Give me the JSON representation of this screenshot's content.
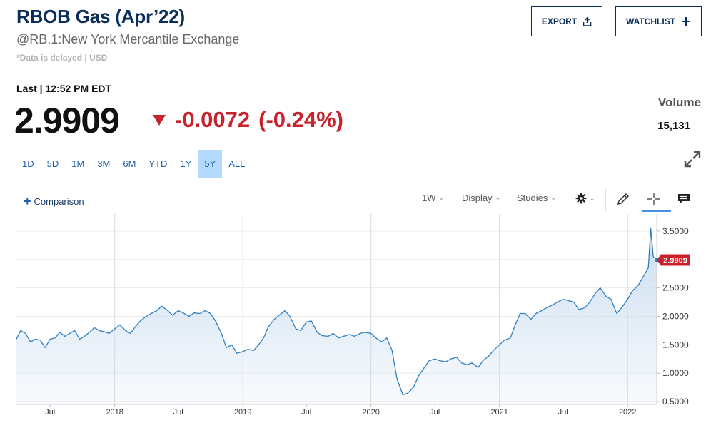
{
  "header": {
    "title": "RBOB Gas (Apr’22)",
    "subtitle": "@RB.1:New York Mercantile Exchange",
    "delayed_note": "*Data is delayed | USD",
    "export_label": "EXPORT",
    "watchlist_label": "WATCHLIST"
  },
  "quote": {
    "last_label": "Last | 12:52 PM EDT",
    "price": "2.9909",
    "change": "-0.0072",
    "change_pct": "(-0.24%)",
    "volume_label": "Volume",
    "volume": "15,131",
    "down_color": "#c8232c"
  },
  "ranges": [
    {
      "label": "1D",
      "active": false
    },
    {
      "label": "5D",
      "active": false
    },
    {
      "label": "1M",
      "active": false
    },
    {
      "label": "3M",
      "active": false
    },
    {
      "label": "6M",
      "active": false
    },
    {
      "label": "YTD",
      "active": false
    },
    {
      "label": "1Y",
      "active": false
    },
    {
      "label": "5Y",
      "active": true
    },
    {
      "label": "ALL",
      "active": false
    }
  ],
  "toolbar": {
    "comparison_label": "Comparison",
    "interval_label": "1W",
    "display_label": "Display",
    "studies_label": "Studies",
    "icons": [
      "gear-icon",
      "pencil-icon",
      "crosshair-icon",
      "comment-icon"
    ]
  },
  "chart_data": {
    "type": "area",
    "title": "",
    "xlabel": "",
    "ylabel": "",
    "xlim": [
      "2017-03-25",
      "2022-03-25"
    ],
    "ylim": [
      0.45,
      3.7
    ],
    "y_ticks": [
      "0.5000",
      "1.0000",
      "1.5000",
      "2.0000",
      "2.5000",
      "3.0000",
      "3.5000"
    ],
    "x_ticks": [
      {
        "label": "Jul",
        "date": "2017-07-01"
      },
      {
        "label": "2018",
        "date": "2018-01-01"
      },
      {
        "label": "Jul",
        "date": "2018-07-01"
      },
      {
        "label": "2019",
        "date": "2019-01-01"
      },
      {
        "label": "Jul",
        "date": "2019-07-01"
      },
      {
        "label": "2020",
        "date": "2020-01-01"
      },
      {
        "label": "Jul",
        "date": "2020-07-01"
      },
      {
        "label": "2021",
        "date": "2021-01-01"
      },
      {
        "label": "Jul",
        "date": "2021-07-01"
      },
      {
        "label": "2022",
        "date": "2022-01-01"
      }
    ],
    "last_value": 2.9909,
    "last_value_label": "2.9909",
    "line_color": "#2e7fc1",
    "fill_color": "#c9dcef",
    "series": [
      {
        "values": [
          [
            "2017-03-25",
            1.58
          ],
          [
            "2017-04-08",
            1.75
          ],
          [
            "2017-04-22",
            1.7
          ],
          [
            "2017-05-06",
            1.55
          ],
          [
            "2017-05-20",
            1.6
          ],
          [
            "2017-06-03",
            1.58
          ],
          [
            "2017-06-17",
            1.45
          ],
          [
            "2017-07-01",
            1.6
          ],
          [
            "2017-07-15",
            1.62
          ],
          [
            "2017-07-29",
            1.72
          ],
          [
            "2017-08-12",
            1.65
          ],
          [
            "2017-08-26",
            1.7
          ],
          [
            "2017-09-09",
            1.75
          ],
          [
            "2017-09-23",
            1.6
          ],
          [
            "2017-10-07",
            1.65
          ],
          [
            "2017-10-21",
            1.72
          ],
          [
            "2017-11-04",
            1.8
          ],
          [
            "2017-11-18",
            1.75
          ],
          [
            "2017-12-02",
            1.73
          ],
          [
            "2017-12-16",
            1.7
          ],
          [
            "2018-01-01",
            1.78
          ],
          [
            "2018-01-15",
            1.85
          ],
          [
            "2018-02-01",
            1.75
          ],
          [
            "2018-02-15",
            1.7
          ],
          [
            "2018-03-01",
            1.82
          ],
          [
            "2018-03-15",
            1.92
          ],
          [
            "2018-04-01",
            2.0
          ],
          [
            "2018-04-15",
            2.05
          ],
          [
            "2018-05-01",
            2.1
          ],
          [
            "2018-05-15",
            2.18
          ],
          [
            "2018-06-01",
            2.1
          ],
          [
            "2018-06-15",
            2.02
          ],
          [
            "2018-07-01",
            2.1
          ],
          [
            "2018-07-15",
            2.06
          ],
          [
            "2018-08-01",
            2.0
          ],
          [
            "2018-08-15",
            2.06
          ],
          [
            "2018-09-01",
            2.05
          ],
          [
            "2018-09-15",
            2.1
          ],
          [
            "2018-10-01",
            2.05
          ],
          [
            "2018-10-15",
            1.92
          ],
          [
            "2018-11-01",
            1.7
          ],
          [
            "2018-11-15",
            1.45
          ],
          [
            "2018-12-01",
            1.5
          ],
          [
            "2018-12-15",
            1.35
          ],
          [
            "2019-01-01",
            1.38
          ],
          [
            "2019-01-15",
            1.42
          ],
          [
            "2019-02-01",
            1.4
          ],
          [
            "2019-02-15",
            1.5
          ],
          [
            "2019-03-01",
            1.62
          ],
          [
            "2019-03-15",
            1.82
          ],
          [
            "2019-04-01",
            1.95
          ],
          [
            "2019-04-15",
            2.02
          ],
          [
            "2019-05-01",
            2.1
          ],
          [
            "2019-05-15",
            2.0
          ],
          [
            "2019-06-01",
            1.78
          ],
          [
            "2019-06-15",
            1.75
          ],
          [
            "2019-07-01",
            1.9
          ],
          [
            "2019-07-15",
            1.92
          ],
          [
            "2019-08-01",
            1.72
          ],
          [
            "2019-08-15",
            1.66
          ],
          [
            "2019-09-01",
            1.65
          ],
          [
            "2019-09-15",
            1.7
          ],
          [
            "2019-10-01",
            1.62
          ],
          [
            "2019-10-15",
            1.65
          ],
          [
            "2019-11-01",
            1.68
          ],
          [
            "2019-11-15",
            1.65
          ],
          [
            "2019-12-01",
            1.7
          ],
          [
            "2019-12-15",
            1.72
          ],
          [
            "2020-01-01",
            1.7
          ],
          [
            "2020-01-15",
            1.62
          ],
          [
            "2020-02-01",
            1.55
          ],
          [
            "2020-02-15",
            1.62
          ],
          [
            "2020-03-01",
            1.4
          ],
          [
            "2020-03-15",
            0.9
          ],
          [
            "2020-04-01",
            0.62
          ],
          [
            "2020-04-15",
            0.65
          ],
          [
            "2020-05-01",
            0.75
          ],
          [
            "2020-05-15",
            0.95
          ],
          [
            "2020-06-01",
            1.1
          ],
          [
            "2020-06-15",
            1.22
          ],
          [
            "2020-07-01",
            1.25
          ],
          [
            "2020-07-15",
            1.22
          ],
          [
            "2020-08-01",
            1.2
          ],
          [
            "2020-08-15",
            1.25
          ],
          [
            "2020-09-01",
            1.28
          ],
          [
            "2020-09-15",
            1.18
          ],
          [
            "2020-10-01",
            1.15
          ],
          [
            "2020-10-15",
            1.18
          ],
          [
            "2020-11-01",
            1.1
          ],
          [
            "2020-11-15",
            1.22
          ],
          [
            "2020-12-01",
            1.3
          ],
          [
            "2020-12-15",
            1.4
          ],
          [
            "2021-01-01",
            1.5
          ],
          [
            "2021-01-15",
            1.58
          ],
          [
            "2021-02-01",
            1.62
          ],
          [
            "2021-02-15",
            1.85
          ],
          [
            "2021-03-01",
            2.05
          ],
          [
            "2021-03-15",
            2.05
          ],
          [
            "2021-04-01",
            1.95
          ],
          [
            "2021-04-15",
            2.05
          ],
          [
            "2021-05-01",
            2.1
          ],
          [
            "2021-05-15",
            2.15
          ],
          [
            "2021-06-01",
            2.2
          ],
          [
            "2021-06-15",
            2.25
          ],
          [
            "2021-07-01",
            2.3
          ],
          [
            "2021-07-15",
            2.28
          ],
          [
            "2021-08-01",
            2.25
          ],
          [
            "2021-08-15",
            2.12
          ],
          [
            "2021-09-01",
            2.15
          ],
          [
            "2021-09-15",
            2.25
          ],
          [
            "2021-10-01",
            2.4
          ],
          [
            "2021-10-15",
            2.5
          ],
          [
            "2021-11-01",
            2.35
          ],
          [
            "2021-11-15",
            2.3
          ],
          [
            "2021-12-01",
            2.05
          ],
          [
            "2021-12-15",
            2.15
          ],
          [
            "2022-01-01",
            2.3
          ],
          [
            "2022-01-15",
            2.45
          ],
          [
            "2022-02-01",
            2.55
          ],
          [
            "2022-02-15",
            2.7
          ],
          [
            "2022-03-01",
            2.85
          ],
          [
            "2022-03-08",
            3.55
          ],
          [
            "2022-03-15",
            3.05
          ],
          [
            "2022-03-25",
            2.9909
          ]
        ]
      }
    ]
  }
}
